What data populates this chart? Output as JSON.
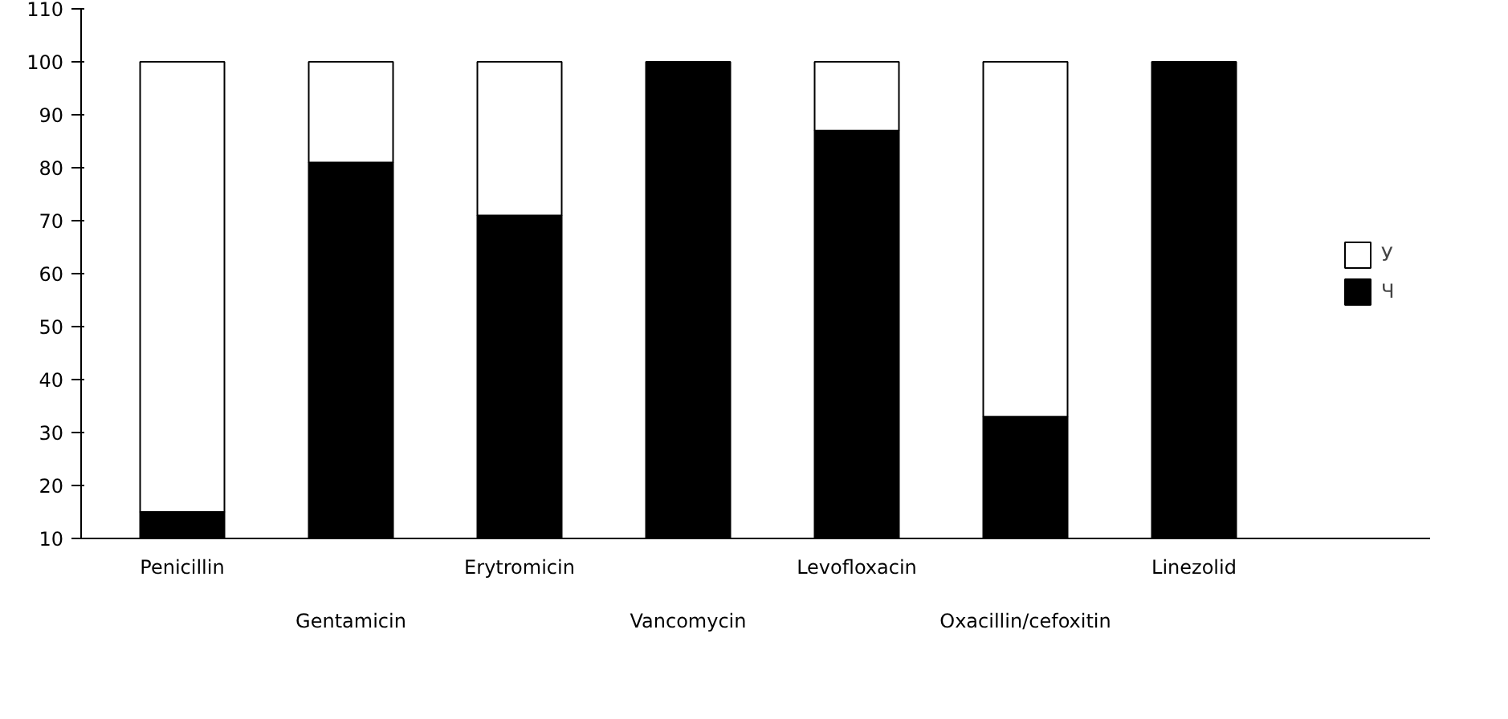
{
  "chart_data": {
    "type": "bar",
    "stacked": true,
    "categories": [
      "Penicillin",
      "Gentamicin",
      "Erytromicin",
      "Vancomycin",
      "Levofloxacin",
      "Oxacillin/cefoxitin",
      "Linezolid"
    ],
    "series": [
      {
        "name": "Ч",
        "color": "#000000",
        "values": [
          15,
          81,
          71,
          100,
          87,
          33,
          100
        ]
      },
      {
        "name": "У",
        "color": "#ffffff",
        "values": [
          85,
          19,
          29,
          null,
          13,
          67,
          null
        ]
      }
    ],
    "ylim": [
      10,
      110
    ],
    "yticks": [
      10,
      20,
      30,
      40,
      50,
      60,
      70,
      80,
      90,
      100,
      110
    ],
    "grid": false,
    "legend": "right"
  }
}
